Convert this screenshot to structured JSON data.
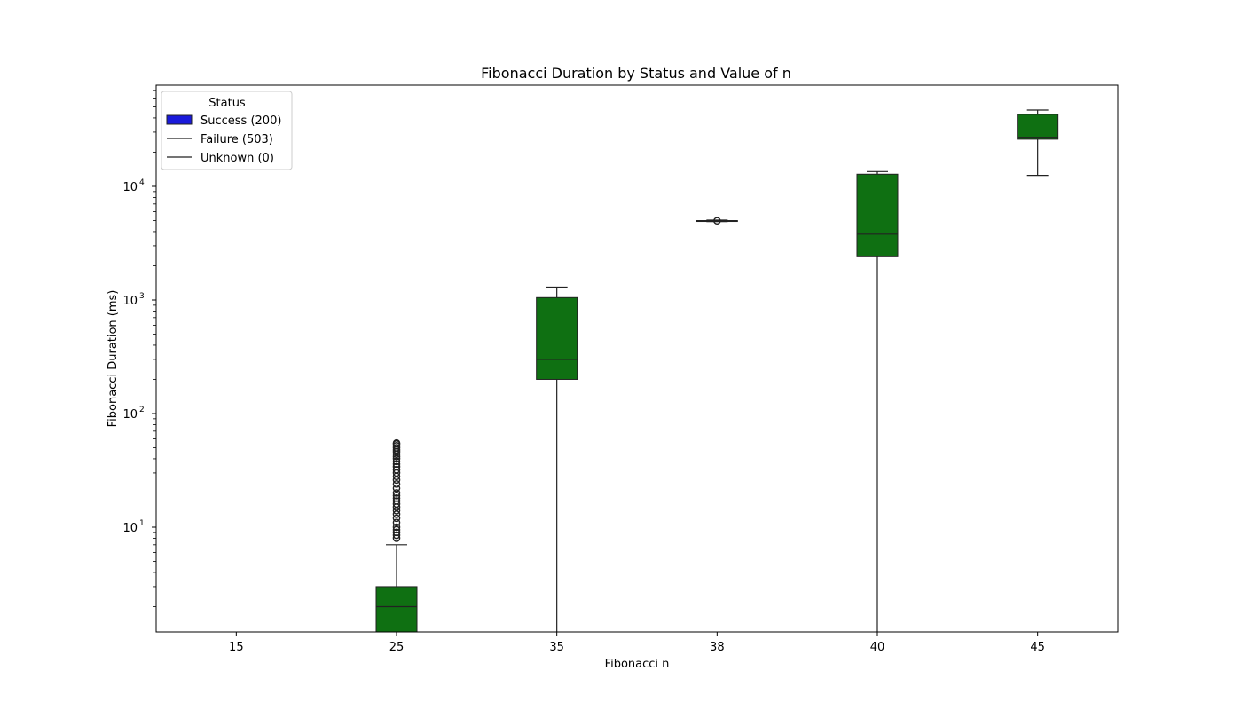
{
  "chart_data": {
    "type": "box",
    "title": "Fibonacci Duration by Status and Value of n",
    "xlabel": "Fibonacci n",
    "ylabel": "Fibonacci Duration (ms)",
    "yscale": "log",
    "ylim": [
      1.2,
      80000
    ],
    "categories": [
      "15",
      "25",
      "35",
      "38",
      "40",
      "45"
    ],
    "y_ticks": [
      {
        "value": 10,
        "base": "10",
        "exp": "1"
      },
      {
        "value": 100,
        "base": "10",
        "exp": "2"
      },
      {
        "value": 1000,
        "base": "10",
        "exp": "3"
      },
      {
        "value": 10000,
        "base": "10",
        "exp": "4"
      }
    ],
    "legend": {
      "title": "Status",
      "placement": "upper-left",
      "entries": [
        {
          "label": "Success (200)",
          "kind": "patch",
          "color": "#1a1adb"
        },
        {
          "label": "Failure (503)",
          "kind": "line",
          "color": "#222222"
        },
        {
          "label": "Unknown (0)",
          "kind": "line",
          "color": "#222222"
        }
      ]
    },
    "box_color": "#0f7012",
    "series": [
      {
        "boxes": [
          {
            "category": "15",
            "empty": true
          },
          {
            "category": "25",
            "whisker_low": 1.0,
            "q1": 1.0,
            "median": 2.0,
            "q3": 3.0,
            "whisker_high": 7.0,
            "outliers": [
              8,
              8.5,
              9,
              9.5,
              10,
              11,
              12,
              13,
              14,
              15,
              16,
              17,
              18,
              19,
              20,
              22,
              24,
              26,
              28,
              30,
              32,
              34,
              36,
              38,
              40,
              42,
              44,
              46,
              48,
              50,
              52,
              54,
              55
            ]
          },
          {
            "category": "35",
            "whisker_low": 1.0,
            "q1": 200,
            "median": 300,
            "q3": 1050,
            "whisker_high": 1300,
            "outliers": []
          },
          {
            "category": "38",
            "whisker_low": 4900,
            "q1": 4950,
            "median": 4980,
            "q3": 5000,
            "whisker_high": 5050,
            "outliers": [
              4980
            ]
          },
          {
            "category": "40",
            "whisker_low": 1.0,
            "q1": 2400,
            "median": 3800,
            "q3": 12800,
            "whisker_high": 13500,
            "outliers": []
          },
          {
            "category": "45",
            "whisker_low": 12500,
            "q1": 26000,
            "median": 27000,
            "q3": 43000,
            "whisker_high": 47000,
            "outliers": []
          }
        ]
      }
    ]
  }
}
